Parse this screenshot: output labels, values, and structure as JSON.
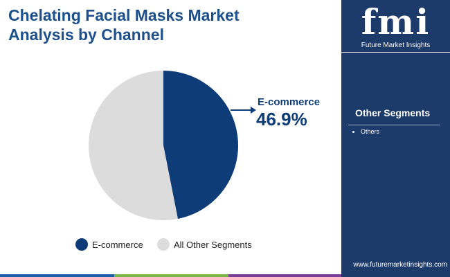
{
  "chart_data": {
    "type": "pie",
    "title": "Chelating Facial Masks Market Analysis by Channel",
    "categories": [
      "E-commerce",
      "All Other Segments"
    ],
    "values": [
      46.9,
      53.1
    ],
    "value_labels": [
      "46.9%",
      null
    ],
    "colors": [
      "#0e3c78",
      "#dcdcdc"
    ],
    "legend": "bottom"
  },
  "sidebar": {
    "heading": "Other Segments",
    "items": [
      "Others"
    ]
  },
  "brand": {
    "logo": "fmi",
    "name": "Future Market Insights",
    "url": "www.futuremarketinsights.com"
  }
}
